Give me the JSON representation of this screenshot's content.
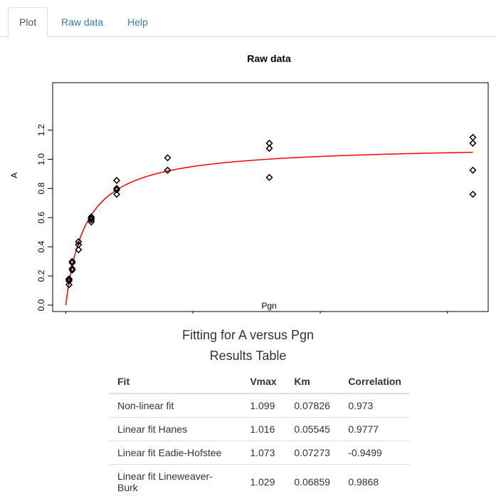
{
  "tabs": [
    {
      "label": "Plot",
      "active": true
    },
    {
      "label": "Raw data",
      "active": false
    },
    {
      "label": "Help",
      "active": false
    }
  ],
  "chart_data": {
    "type": "scatter",
    "title": "Raw data",
    "xlabel": "Pgn",
    "ylabel": "A",
    "xlim": [
      0,
      1.65
    ],
    "ylim": [
      0,
      1.22
    ],
    "x_ticks": [
      "0.0",
      "0.5",
      "1.0",
      "1.5"
    ],
    "y_ticks": [
      "0.0",
      "0.2",
      "0.4",
      "0.6",
      "0.8",
      "1.0",
      "1.2"
    ],
    "grid": false,
    "points": [
      [
        0.0125,
        0.14
      ],
      [
        0.0125,
        0.165
      ],
      [
        0.0125,
        0.175
      ],
      [
        0.0125,
        0.18
      ],
      [
        0.025,
        0.24
      ],
      [
        0.025,
        0.25
      ],
      [
        0.025,
        0.29
      ],
      [
        0.025,
        0.3
      ],
      [
        0.05,
        0.38
      ],
      [
        0.05,
        0.415
      ],
      [
        0.05,
        0.435
      ],
      [
        0.1,
        0.57
      ],
      [
        0.1,
        0.585
      ],
      [
        0.1,
        0.595
      ],
      [
        0.1,
        0.605
      ],
      [
        0.2,
        0.76
      ],
      [
        0.2,
        0.79
      ],
      [
        0.2,
        0.8
      ],
      [
        0.2,
        0.855
      ],
      [
        0.4,
        0.925
      ],
      [
        0.4,
        0.925
      ],
      [
        0.4,
        1.01
      ],
      [
        0.8,
        0.875
      ],
      [
        0.8,
        1.075
      ],
      [
        0.8,
        1.11
      ],
      [
        1.6,
        0.76
      ],
      [
        1.6,
        0.925
      ],
      [
        1.6,
        1.11
      ],
      [
        1.6,
        1.15
      ]
    ],
    "fit_curve": {
      "type": "michaelis-menten",
      "vmax": 1.099,
      "km": 0.07826,
      "x_range": [
        0,
        1.6
      ],
      "color": "#ff0000"
    },
    "point_color": "#000000"
  },
  "results": {
    "fit_title": "Fitting for A versus Pgn",
    "table_title": "Results Table",
    "headers": [
      "Fit",
      "Vmax",
      "Km",
      "Correlation"
    ],
    "rows": [
      [
        "Non-linear fit",
        "1.099",
        "0.07826",
        "0.973"
      ],
      [
        "Linear fit Hanes",
        "1.016",
        "0.05545",
        "0.9777"
      ],
      [
        "Linear fit Eadie-Hofstee",
        "1.073",
        "0.07273",
        "-0.9499"
      ],
      [
        "Linear fit Lineweaver-Burk",
        "1.029",
        "0.06859",
        "0.9868"
      ]
    ]
  }
}
